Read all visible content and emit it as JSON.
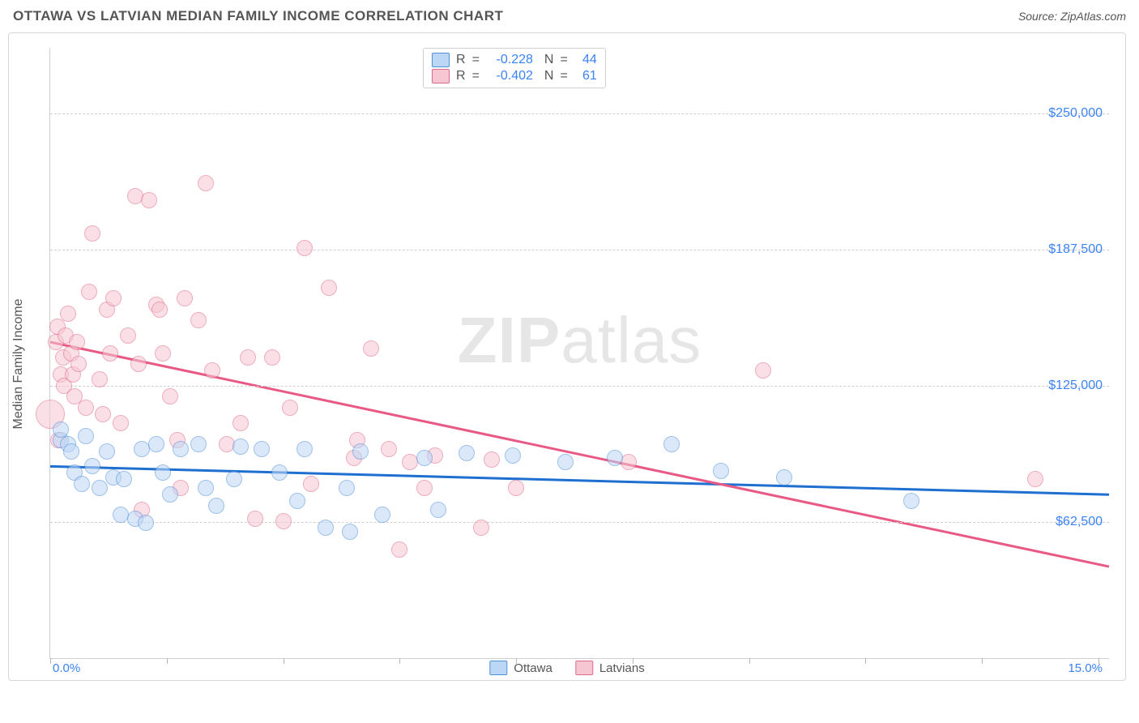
{
  "title": "OTTAWA VS LATVIAN MEDIAN FAMILY INCOME CORRELATION CHART",
  "source_prefix": "Source: ",
  "source": "ZipAtlas.com",
  "watermark_bold": "ZIP",
  "watermark_light": "atlas",
  "y_axis_title": "Median Family Income",
  "chart": {
    "type": "scatter",
    "xlim": [
      0,
      15
    ],
    "ylim": [
      0,
      280000
    ],
    "x_tick_positions": [
      0,
      1.65,
      3.3,
      4.95,
      6.6,
      8.25,
      9.9,
      11.55,
      13.2,
      14.85
    ],
    "y_gridlines": [
      62500,
      125000,
      187500,
      250000
    ],
    "y_tick_labels": [
      "$62,500",
      "$125,000",
      "$187,500",
      "$250,000"
    ],
    "x_corner_labels": [
      "0.0%",
      "15.0%"
    ],
    "background_color": "#ffffff",
    "grid_color": "#d0d0d0",
    "axis_color": "#cfcfcf",
    "ylabel_color": "#3b82f6",
    "marker_radius": 10,
    "marker_opacity": 0.55,
    "big_marker_radius": 18
  },
  "series": [
    {
      "name": "Ottawa",
      "fill": "#bcd7f5",
      "stroke": "#4f8fd8",
      "line_color": "#1f6fd1",
      "line_width": 3,
      "R": "-0.228",
      "N": "44",
      "regression": {
        "x1": 0,
        "y1": 88000,
        "x2": 15,
        "y2": 75000
      },
      "points": [
        [
          0.15,
          100000
        ],
        [
          0.15,
          105000
        ],
        [
          0.25,
          98000
        ],
        [
          0.3,
          95000
        ],
        [
          0.35,
          85000
        ],
        [
          0.45,
          80000
        ],
        [
          0.5,
          102000
        ],
        [
          0.6,
          88000
        ],
        [
          0.7,
          78000
        ],
        [
          0.8,
          95000
        ],
        [
          0.9,
          83000
        ],
        [
          1.0,
          66000
        ],
        [
          1.05,
          82000
        ],
        [
          1.2,
          64000
        ],
        [
          1.3,
          96000
        ],
        [
          1.35,
          62000
        ],
        [
          1.5,
          98000
        ],
        [
          1.6,
          85000
        ],
        [
          1.7,
          75000
        ],
        [
          1.85,
          96000
        ],
        [
          2.1,
          98000
        ],
        [
          2.2,
          78000
        ],
        [
          2.35,
          70000
        ],
        [
          2.6,
          82000
        ],
        [
          2.7,
          97000
        ],
        [
          3.0,
          96000
        ],
        [
          3.25,
          85000
        ],
        [
          3.5,
          72000
        ],
        [
          3.6,
          96000
        ],
        [
          3.9,
          60000
        ],
        [
          4.2,
          78000
        ],
        [
          4.25,
          58000
        ],
        [
          4.4,
          95000
        ],
        [
          4.7,
          66000
        ],
        [
          5.3,
          92000
        ],
        [
          5.5,
          68000
        ],
        [
          5.9,
          94000
        ],
        [
          6.55,
          93000
        ],
        [
          7.3,
          90000
        ],
        [
          8.0,
          92000
        ],
        [
          8.8,
          98000
        ],
        [
          9.5,
          86000
        ],
        [
          10.4,
          83000
        ],
        [
          12.2,
          72000
        ]
      ]
    },
    {
      "name": "Latvians",
      "fill": "#f6c6d2",
      "stroke": "#e06a8c",
      "line_color": "#e85a85",
      "line_width": 3,
      "R": "-0.402",
      "N": "61",
      "regression": {
        "x1": 0,
        "y1": 145000,
        "x2": 15,
        "y2": 42000
      },
      "big_point": [
        0.0,
        112000
      ],
      "points": [
        [
          0.08,
          145000
        ],
        [
          0.1,
          152000
        ],
        [
          0.15,
          130000
        ],
        [
          0.18,
          138000
        ],
        [
          0.2,
          125000
        ],
        [
          0.22,
          148000
        ],
        [
          0.25,
          158000
        ],
        [
          0.3,
          140000
        ],
        [
          0.32,
          130000
        ],
        [
          0.35,
          120000
        ],
        [
          0.38,
          145000
        ],
        [
          0.4,
          135000
        ],
        [
          0.5,
          115000
        ],
        [
          0.55,
          168000
        ],
        [
          0.6,
          195000
        ],
        [
          0.7,
          128000
        ],
        [
          0.75,
          112000
        ],
        [
          0.8,
          160000
        ],
        [
          0.85,
          140000
        ],
        [
          0.9,
          165000
        ],
        [
          1.0,
          108000
        ],
        [
          1.1,
          148000
        ],
        [
          1.2,
          212000
        ],
        [
          1.25,
          135000
        ],
        [
          1.3,
          68000
        ],
        [
          1.4,
          210000
        ],
        [
          1.5,
          162000
        ],
        [
          1.55,
          160000
        ],
        [
          1.6,
          140000
        ],
        [
          1.7,
          120000
        ],
        [
          1.8,
          100000
        ],
        [
          1.85,
          78000
        ],
        [
          1.9,
          165000
        ],
        [
          2.1,
          155000
        ],
        [
          2.2,
          218000
        ],
        [
          2.3,
          132000
        ],
        [
          2.5,
          98000
        ],
        [
          2.7,
          108000
        ],
        [
          2.8,
          138000
        ],
        [
          2.9,
          64000
        ],
        [
          3.15,
          138000
        ],
        [
          3.3,
          63000
        ],
        [
          3.4,
          115000
        ],
        [
          3.6,
          188000
        ],
        [
          3.7,
          80000
        ],
        [
          3.95,
          170000
        ],
        [
          4.3,
          92000
        ],
        [
          4.35,
          100000
        ],
        [
          4.55,
          142000
        ],
        [
          4.8,
          96000
        ],
        [
          4.95,
          50000
        ],
        [
          5.1,
          90000
        ],
        [
          5.3,
          78000
        ],
        [
          5.45,
          93000
        ],
        [
          6.1,
          60000
        ],
        [
          6.25,
          91000
        ],
        [
          6.6,
          78000
        ],
        [
          8.2,
          90000
        ],
        [
          10.1,
          132000
        ],
        [
          13.95,
          82000
        ],
        [
          0.12,
          100000
        ]
      ]
    }
  ],
  "stat_labels": {
    "R": "R",
    "eq": "=",
    "N": "N"
  },
  "bottom_legend": [
    {
      "label": "Ottawa",
      "fill": "#bcd7f5",
      "stroke": "#4f8fd8"
    },
    {
      "label": "Latvians",
      "fill": "#f6c6d2",
      "stroke": "#e06a8c"
    }
  ]
}
